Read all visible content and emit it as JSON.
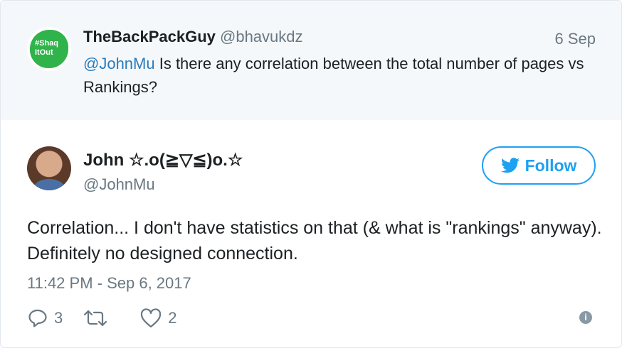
{
  "parent": {
    "avatar_text": "#Shaq ItOut",
    "name": "TheBackPackGuy",
    "handle": "@bhavukdz",
    "date": "6 Sep",
    "mention": "@JohnMu",
    "text": " Is there any correlation between the total number of pages vs Rankings?"
  },
  "tweet": {
    "name": "John ☆.o(≧▽≦)o.☆",
    "handle": "@JohnMu",
    "follow_label": "Follow",
    "text": "Correlation... I don't have statistics on that (& what is \"rankings\" anyway). Definitely no designed connection.",
    "timestamp": "11:42 PM - Sep 6, 2017",
    "replies": "3",
    "likes": "2",
    "info_label": "i"
  },
  "colors": {
    "accent": "#1da1f2",
    "muted": "#697882",
    "parent_bg": "#f5f8fa"
  }
}
